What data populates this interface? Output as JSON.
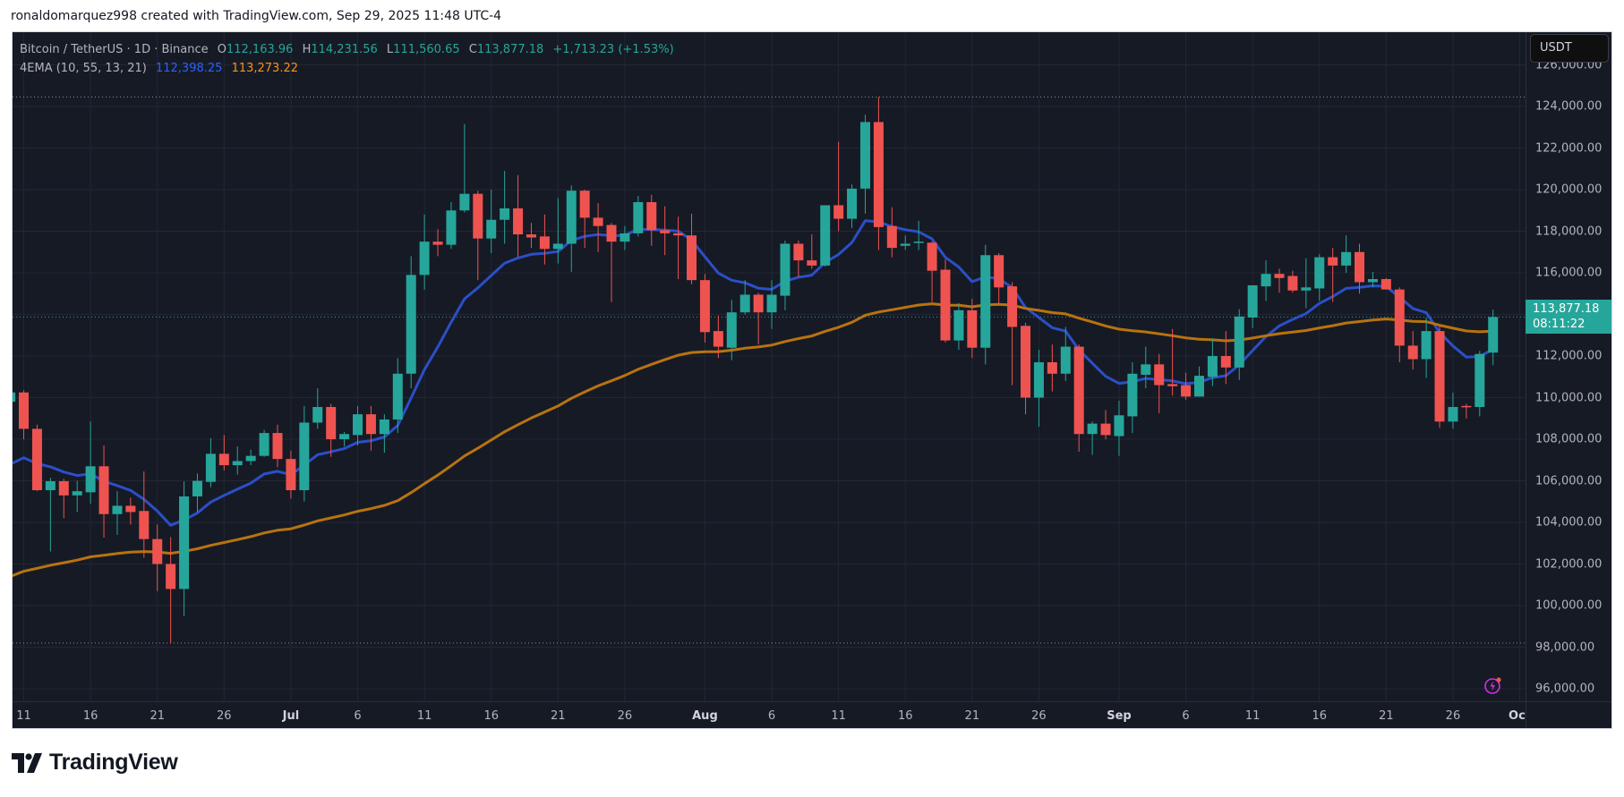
{
  "attribution": "ronaldomarquez998 created with TradingView.com, Sep 29, 2025 11:48 UTC-4",
  "legend": {
    "symbol": "Bitcoin / TetherUS · 1D · Binance",
    "o_label": "O",
    "o": "112,163.96",
    "h_label": "H",
    "h": "114,231.56",
    "l_label": "L",
    "l": "111,560.65",
    "c_label": "C",
    "c": "113,877.18",
    "change": "+1,713.23 (+1.53%)",
    "indicator": "4EMA (10, 55, 13, 21)",
    "ema_fast": "112,398.25",
    "ema_slow": "113,273.22"
  },
  "currency": "USDT",
  "last_price": {
    "value": "113,877.18",
    "countdown": "08:11:22"
  },
  "logo": "TradingView",
  "colors": {
    "background": "#161a25",
    "grid": "#232733",
    "up": "#26a69a",
    "down": "#ef5350",
    "ema_fast_line": "#2b4fc8",
    "ema_slow_line": "#b8730f",
    "ema_fast_text": "#2962ff",
    "ema_slow_text": "#f7931a",
    "lightning": "#d030e8"
  },
  "icons": {
    "lightning": "lightning-bolt-icon",
    "logo": "tradingview-logo-icon"
  },
  "chart_data": {
    "type": "candlestick",
    "symbol": "BTCUSDT",
    "interval": "1D",
    "ylim": [
      95400,
      127570
    ],
    "grid": true,
    "price_ticks": [
      {
        "value": 126000,
        "label": "126,000.00"
      },
      {
        "value": 124000,
        "label": "124,000.00"
      },
      {
        "value": 122000,
        "label": "122,000.00"
      },
      {
        "value": 120000,
        "label": "120,000.00"
      },
      {
        "value": 118000,
        "label": "118,000.00"
      },
      {
        "value": 116000,
        "label": "116,000.00"
      },
      {
        "value": 112000,
        "label": "112,000.00"
      },
      {
        "value": 110000,
        "label": "110,000.00"
      },
      {
        "value": 108000,
        "label": "108,000.00"
      },
      {
        "value": 106000,
        "label": "106,000.00"
      },
      {
        "value": 104000,
        "label": "104,000.00"
      },
      {
        "value": 102000,
        "label": "102,000.00"
      },
      {
        "value": 100000,
        "label": "100,000.00"
      },
      {
        "value": 98000,
        "label": "98,000.00"
      },
      {
        "value": 96000,
        "label": "96,000.00"
      }
    ],
    "grid_prices": [
      126000,
      124000,
      122000,
      120000,
      118000,
      116000,
      114000,
      112000,
      110000,
      108000,
      106000,
      104000,
      102000,
      100000,
      98000,
      96000
    ],
    "time_ticks": [
      {
        "date": "2025-06-11",
        "label": "11"
      },
      {
        "date": "2025-06-16",
        "label": "16"
      },
      {
        "date": "2025-06-21",
        "label": "21"
      },
      {
        "date": "2025-06-26",
        "label": "26"
      },
      {
        "date": "2025-07-01",
        "label": "Jul",
        "month": true
      },
      {
        "date": "2025-07-06",
        "label": "6"
      },
      {
        "date": "2025-07-11",
        "label": "11"
      },
      {
        "date": "2025-07-16",
        "label": "16"
      },
      {
        "date": "2025-07-21",
        "label": "21"
      },
      {
        "date": "2025-07-26",
        "label": "26"
      },
      {
        "date": "2025-08-01",
        "label": "Aug",
        "month": true
      },
      {
        "date": "2025-08-06",
        "label": "6"
      },
      {
        "date": "2025-08-11",
        "label": "11"
      },
      {
        "date": "2025-08-16",
        "label": "16"
      },
      {
        "date": "2025-08-21",
        "label": "21"
      },
      {
        "date": "2025-08-26",
        "label": "26"
      },
      {
        "date": "2025-09-01",
        "label": "Sep",
        "month": true
      },
      {
        "date": "2025-09-06",
        "label": "6"
      },
      {
        "date": "2025-09-11",
        "label": "11"
      },
      {
        "date": "2025-09-16",
        "label": "16"
      },
      {
        "date": "2025-09-21",
        "label": "21"
      },
      {
        "date": "2025-09-26",
        "label": "26"
      },
      {
        "date": "2025-10-01",
        "label": "Oct",
        "month": true
      }
    ],
    "ema": [
      {
        "period": 10,
        "first_value": 106800,
        "role": "fast"
      },
      {
        "period": 55,
        "first_value": 101400,
        "role": "slow"
      }
    ],
    "candles_columns": [
      "date",
      "open",
      "high",
      "low",
      "close"
    ],
    "candles": [
      [
        "2025-06-10",
        109800,
        110500,
        108900,
        110250
      ],
      [
        "2025-06-11",
        110250,
        110350,
        108000,
        108500
      ],
      [
        "2025-06-12",
        108500,
        108700,
        105500,
        105550
      ],
      [
        "2025-06-13",
        105550,
        106150,
        102600,
        105980
      ],
      [
        "2025-06-14",
        105980,
        106100,
        104200,
        105300
      ],
      [
        "2025-06-15",
        105300,
        106000,
        104500,
        105500
      ],
      [
        "2025-06-16",
        105450,
        108850,
        104900,
        106700
      ],
      [
        "2025-06-17",
        106700,
        107700,
        103270,
        104400
      ],
      [
        "2025-06-18",
        104400,
        105500,
        103400,
        104800
      ],
      [
        "2025-06-19",
        104800,
        105200,
        103900,
        104500
      ],
      [
        "2025-06-20",
        104550,
        106450,
        102300,
        103200
      ],
      [
        "2025-06-21",
        103200,
        103900,
        100700,
        102000
      ],
      [
        "2025-06-22",
        102000,
        103300,
        98200,
        100800
      ],
      [
        "2025-06-23",
        100800,
        105970,
        99500,
        105250
      ],
      [
        "2025-06-24",
        105250,
        106350,
        104500,
        106000
      ],
      [
        "2025-06-25",
        105950,
        108050,
        105700,
        107300
      ],
      [
        "2025-06-26",
        107300,
        108200,
        106500,
        106750
      ],
      [
        "2025-06-27",
        106750,
        107650,
        106300,
        106950
      ],
      [
        "2025-06-28",
        106950,
        107500,
        106750,
        107200
      ],
      [
        "2025-06-29",
        107200,
        108450,
        107150,
        108300
      ],
      [
        "2025-06-30",
        108300,
        108700,
        106650,
        107050
      ],
      [
        "2025-07-01",
        107050,
        107450,
        105150,
        105550
      ],
      [
        "2025-07-02",
        105550,
        109600,
        105000,
        108800
      ],
      [
        "2025-07-03",
        108800,
        110450,
        108500,
        109550
      ],
      [
        "2025-07-04",
        109550,
        109700,
        107150,
        108000
      ],
      [
        "2025-07-05",
        108000,
        108350,
        107650,
        108250
      ],
      [
        "2025-07-06",
        108200,
        109600,
        107700,
        109200
      ],
      [
        "2025-07-07",
        109200,
        109600,
        107450,
        108250
      ],
      [
        "2025-07-08",
        108250,
        109200,
        107350,
        108950
      ],
      [
        "2025-07-09",
        108950,
        111900,
        108300,
        111150
      ],
      [
        "2025-07-10",
        111150,
        116800,
        110450,
        115900
      ],
      [
        "2025-07-11",
        115900,
        118800,
        115200,
        117500
      ],
      [
        "2025-07-12",
        117500,
        118100,
        116800,
        117350
      ],
      [
        "2025-07-13",
        117350,
        119400,
        117150,
        119000
      ],
      [
        "2025-07-14",
        119000,
        123150,
        118900,
        119800
      ],
      [
        "2025-07-15",
        119800,
        119950,
        115650,
        117650
      ],
      [
        "2025-07-16",
        117650,
        120000,
        116950,
        118550
      ],
      [
        "2025-07-17",
        118550,
        120900,
        117400,
        119100
      ],
      [
        "2025-07-18",
        119100,
        120700,
        116750,
        117850
      ],
      [
        "2025-07-19",
        117850,
        118400,
        117200,
        117700
      ],
      [
        "2025-07-20",
        117750,
        118800,
        116400,
        117150
      ],
      [
        "2025-07-21",
        117150,
        119600,
        116450,
        117400
      ],
      [
        "2025-07-22",
        117400,
        120200,
        116050,
        119950
      ],
      [
        "2025-07-23",
        119950,
        120000,
        117200,
        118650
      ],
      [
        "2025-07-24",
        118650,
        119350,
        117000,
        118250
      ],
      [
        "2025-07-25",
        118300,
        118400,
        114600,
        117500
      ],
      [
        "2025-07-26",
        117500,
        118250,
        117100,
        117900
      ],
      [
        "2025-07-27",
        117900,
        119700,
        117750,
        119400
      ],
      [
        "2025-07-28",
        119400,
        119750,
        117300,
        118050
      ],
      [
        "2025-07-29",
        118050,
        119200,
        116850,
        117900
      ],
      [
        "2025-07-30",
        117900,
        118700,
        115700,
        117800
      ],
      [
        "2025-07-31",
        117800,
        118850,
        115450,
        115650
      ],
      [
        "2025-08-01",
        115650,
        115950,
        112650,
        113150
      ],
      [
        "2025-08-02",
        113200,
        113950,
        111900,
        112450
      ],
      [
        "2025-08-03",
        112400,
        114700,
        111800,
        114100
      ],
      [
        "2025-08-04",
        114100,
        115650,
        114000,
        114950
      ],
      [
        "2025-08-05",
        114950,
        115050,
        112550,
        114100
      ],
      [
        "2025-08-06",
        114100,
        115650,
        113300,
        114950
      ],
      [
        "2025-08-07",
        114900,
        117550,
        114200,
        117400
      ],
      [
        "2025-08-08",
        117400,
        117550,
        115800,
        116600
      ],
      [
        "2025-08-09",
        116600,
        117850,
        116200,
        116350
      ],
      [
        "2025-08-10",
        116350,
        119250,
        116300,
        119250
      ],
      [
        "2025-08-11",
        119250,
        122300,
        118000,
        118600
      ],
      [
        "2025-08-12",
        118600,
        120250,
        118150,
        120050
      ],
      [
        "2025-08-13",
        120050,
        123600,
        118850,
        123250
      ],
      [
        "2025-08-14",
        123250,
        124450,
        117100,
        118200
      ],
      [
        "2025-08-15",
        118250,
        119150,
        116750,
        117200
      ],
      [
        "2025-08-16",
        117300,
        117800,
        117100,
        117400
      ],
      [
        "2025-08-17",
        117450,
        118500,
        117100,
        117500
      ],
      [
        "2025-08-18",
        117450,
        117500,
        114600,
        116100
      ],
      [
        "2025-08-19",
        116150,
        116650,
        112650,
        112750
      ],
      [
        "2025-08-20",
        112750,
        114550,
        112300,
        114200
      ],
      [
        "2025-08-21",
        114200,
        114750,
        111900,
        112400
      ],
      [
        "2025-08-22",
        112400,
        117350,
        111600,
        116850
      ],
      [
        "2025-08-23",
        116850,
        116950,
        114500,
        115300
      ],
      [
        "2025-08-24",
        115350,
        115550,
        110600,
        113400
      ],
      [
        "2025-08-25",
        113450,
        113600,
        109200,
        110000
      ],
      [
        "2025-08-26",
        110000,
        112300,
        108600,
        111700
      ],
      [
        "2025-08-27",
        111700,
        112550,
        110300,
        111150
      ],
      [
        "2025-08-28",
        111150,
        113400,
        110800,
        112450
      ],
      [
        "2025-08-29",
        112450,
        112550,
        107400,
        108250
      ],
      [
        "2025-08-30",
        108250,
        108850,
        107250,
        108750
      ],
      [
        "2025-08-31",
        108750,
        109400,
        108000,
        108200
      ],
      [
        "2025-09-01",
        108150,
        109850,
        107200,
        109150
      ],
      [
        "2025-09-02",
        109100,
        111700,
        108300,
        111150
      ],
      [
        "2025-09-03",
        111100,
        112450,
        110450,
        111600
      ],
      [
        "2025-09-04",
        111600,
        112100,
        109250,
        110600
      ],
      [
        "2025-09-05",
        110650,
        113300,
        110100,
        110550
      ],
      [
        "2025-09-06",
        110600,
        111200,
        109900,
        110050
      ],
      [
        "2025-09-07",
        110050,
        111500,
        110050,
        111050
      ],
      [
        "2025-09-08",
        111000,
        112850,
        110550,
        112000
      ],
      [
        "2025-09-09",
        112000,
        113200,
        110650,
        111450
      ],
      [
        "2025-09-10",
        111450,
        114250,
        110850,
        113900
      ],
      [
        "2025-09-11",
        113850,
        115400,
        113350,
        115400
      ],
      [
        "2025-09-12",
        115350,
        116600,
        114650,
        115950
      ],
      [
        "2025-09-13",
        115950,
        116200,
        115050,
        115750
      ],
      [
        "2025-09-14",
        115850,
        116100,
        115050,
        115150
      ],
      [
        "2025-09-15",
        115150,
        116700,
        114300,
        115300
      ],
      [
        "2025-09-16",
        115250,
        116900,
        114650,
        116750
      ],
      [
        "2025-09-17",
        116750,
        117200,
        114600,
        116350
      ],
      [
        "2025-09-18",
        116350,
        117800,
        116000,
        117000
      ],
      [
        "2025-09-19",
        117000,
        117400,
        115000,
        115550
      ],
      [
        "2025-09-20",
        115550,
        116050,
        115300,
        115700
      ],
      [
        "2025-09-21",
        115700,
        115750,
        115200,
        115200
      ],
      [
        "2025-09-22",
        115200,
        115300,
        111700,
        112500
      ],
      [
        "2025-09-23",
        112500,
        113200,
        111350,
        111850
      ],
      [
        "2025-09-24",
        111850,
        113850,
        110950,
        113200
      ],
      [
        "2025-09-25",
        113200,
        113450,
        108550,
        108850
      ],
      [
        "2025-09-26",
        108850,
        110250,
        108500,
        109550
      ],
      [
        "2025-09-27",
        109600,
        109700,
        109000,
        109550
      ],
      [
        "2025-09-28",
        109550,
        112250,
        109100,
        112100
      ],
      [
        "2025-09-29",
        112163.96,
        114231.56,
        111560.65,
        113877.18
      ]
    ]
  }
}
